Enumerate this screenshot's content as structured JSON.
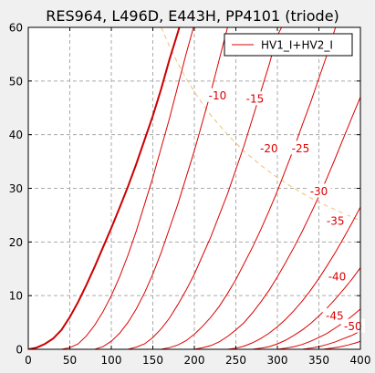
{
  "chart_data": {
    "type": "line",
    "title": "RES964, L496D, E443H, PP4101 (triode)",
    "xlim": [
      0,
      400
    ],
    "ylim": [
      0,
      60
    ],
    "x_ticks": [
      0,
      50,
      100,
      150,
      200,
      250,
      300,
      350,
      400
    ],
    "y_ticks": [
      0,
      10,
      20,
      30,
      40,
      50,
      60
    ],
    "grid": true,
    "legend": {
      "placement": "top-right",
      "entries": [
        "HV1_I+HV2_I"
      ]
    },
    "colors": {
      "curves": "#dd0000",
      "zero_curve": "#cc0000",
      "dissipation": "#f0c070",
      "label_bg": "#ffffff"
    },
    "series": [
      {
        "grid_v": "0",
        "label": "",
        "points": [
          [
            0,
            0
          ],
          [
            10,
            0.3
          ],
          [
            20,
            1
          ],
          [
            30,
            2
          ],
          [
            40,
            3.6
          ],
          [
            50,
            6
          ],
          [
            60,
            8.8
          ],
          [
            70,
            12
          ],
          [
            80,
            15.4
          ],
          [
            90,
            19
          ],
          [
            100,
            22.6
          ],
          [
            110,
            26.4
          ],
          [
            120,
            30.3
          ],
          [
            130,
            34.5
          ],
          [
            140,
            39
          ],
          [
            150,
            43.5
          ],
          [
            160,
            48.5
          ],
          [
            170,
            54
          ],
          [
            178,
            58
          ],
          [
            182,
            60
          ]
        ]
      },
      {
        "grid_v": "-5",
        "label": "",
        "points": [
          [
            40,
            0
          ],
          [
            50,
            0.3
          ],
          [
            60,
            1
          ],
          [
            70,
            2.5
          ],
          [
            80,
            4.5
          ],
          [
            90,
            7
          ],
          [
            100,
            10
          ],
          [
            110,
            13.5
          ],
          [
            120,
            17.5
          ],
          [
            130,
            22
          ],
          [
            140,
            27
          ],
          [
            150,
            32
          ],
          [
            160,
            37.5
          ],
          [
            170,
            43
          ],
          [
            180,
            49
          ],
          [
            190,
            55
          ],
          [
            199,
            60
          ]
        ]
      },
      {
        "grid_v": "-10",
        "label": "-10",
        "label_pos": [
          228,
          47.3
        ],
        "points": [
          [
            80,
            0
          ],
          [
            90,
            0.5
          ],
          [
            100,
            1.5
          ],
          [
            110,
            3
          ],
          [
            120,
            5
          ],
          [
            130,
            7.5
          ],
          [
            140,
            10.5
          ],
          [
            150,
            14
          ],
          [
            160,
            18
          ],
          [
            170,
            22.5
          ],
          [
            180,
            27
          ],
          [
            190,
            32
          ],
          [
            200,
            37
          ],
          [
            210,
            42.5
          ],
          [
            220,
            48
          ],
          [
            230,
            54
          ],
          [
            240,
            60
          ]
        ]
      },
      {
        "grid_v": "-15",
        "label": "-15",
        "label_pos": [
          273,
          46.7
        ],
        "points": [
          [
            120,
            0
          ],
          [
            130,
            0.4
          ],
          [
            140,
            1
          ],
          [
            150,
            2.2
          ],
          [
            160,
            3.8
          ],
          [
            170,
            5.8
          ],
          [
            180,
            8.3
          ],
          [
            190,
            11
          ],
          [
            200,
            14
          ],
          [
            210,
            17.5
          ],
          [
            220,
            21
          ],
          [
            230,
            25
          ],
          [
            240,
            29
          ],
          [
            250,
            33.5
          ],
          [
            260,
            38
          ],
          [
            270,
            43
          ],
          [
            280,
            48
          ],
          [
            290,
            53
          ],
          [
            300,
            58.5
          ],
          [
            305,
            60
          ]
        ]
      },
      {
        "grid_v": "-20",
        "label": "-20",
        "label_pos": [
          290,
          37.5
        ],
        "points": [
          [
            160,
            0
          ],
          [
            170,
            0.3
          ],
          [
            180,
            0.8
          ],
          [
            190,
            1.6
          ],
          [
            200,
            2.8
          ],
          [
            210,
            4.3
          ],
          [
            220,
            6
          ],
          [
            230,
            8
          ],
          [
            240,
            10.4
          ],
          [
            250,
            13
          ],
          [
            260,
            16
          ],
          [
            270,
            19
          ],
          [
            280,
            22.3
          ],
          [
            290,
            25.8
          ],
          [
            300,
            29.5
          ],
          [
            310,
            33.5
          ],
          [
            320,
            37.5
          ],
          [
            330,
            41.8
          ],
          [
            340,
            46
          ],
          [
            350,
            50.5
          ],
          [
            360,
            55
          ],
          [
            370,
            60
          ]
        ]
      },
      {
        "grid_v": "-25",
        "label": "-25",
        "label_pos": [
          328,
          37.5
        ],
        "points": [
          [
            200,
            0
          ],
          [
            210,
            0.3
          ],
          [
            220,
            0.7
          ],
          [
            230,
            1.4
          ],
          [
            240,
            2.4
          ],
          [
            250,
            3.6
          ],
          [
            260,
            5
          ],
          [
            270,
            6.8
          ],
          [
            280,
            8.8
          ],
          [
            290,
            11
          ],
          [
            300,
            13.5
          ],
          [
            310,
            16.2
          ],
          [
            320,
            19
          ],
          [
            330,
            22
          ],
          [
            340,
            25.2
          ],
          [
            350,
            28.5
          ],
          [
            360,
            32
          ],
          [
            370,
            35.7
          ],
          [
            380,
            39.5
          ],
          [
            390,
            43.3
          ],
          [
            400,
            47
          ]
        ]
      },
      {
        "grid_v": "-30",
        "label": "-30",
        "label_pos": [
          350,
          29.5
        ],
        "points": [
          [
            240,
            0
          ],
          [
            250,
            0.2
          ],
          [
            260,
            0.6
          ],
          [
            270,
            1.2
          ],
          [
            280,
            2
          ],
          [
            290,
            3
          ],
          [
            300,
            4.2
          ],
          [
            310,
            5.6
          ],
          [
            320,
            7.2
          ],
          [
            330,
            9
          ],
          [
            340,
            11
          ],
          [
            350,
            13.2
          ],
          [
            360,
            15.6
          ],
          [
            370,
            18.1
          ],
          [
            380,
            20.8
          ],
          [
            390,
            23.6
          ],
          [
            400,
            26.5
          ]
        ]
      },
      {
        "grid_v": "-35",
        "label": "-35",
        "label_pos": [
          370,
          24
        ],
        "points": [
          [
            270,
            0
          ],
          [
            280,
            0.2
          ],
          [
            290,
            0.5
          ],
          [
            300,
            1
          ],
          [
            310,
            1.7
          ],
          [
            320,
            2.6
          ],
          [
            330,
            3.6
          ],
          [
            340,
            4.8
          ],
          [
            350,
            6.2
          ],
          [
            360,
            7.7
          ],
          [
            370,
            9.4
          ],
          [
            380,
            11.2
          ],
          [
            390,
            13.1
          ],
          [
            400,
            15.2
          ]
        ]
      },
      {
        "grid_v": "-40",
        "label": "-40",
        "label_pos": [
          372,
          13.6
        ],
        "points": [
          [
            300,
            0
          ],
          [
            310,
            0.2
          ],
          [
            320,
            0.5
          ],
          [
            330,
            0.9
          ],
          [
            340,
            1.5
          ],
          [
            350,
            2.2
          ],
          [
            360,
            3
          ],
          [
            370,
            4
          ],
          [
            380,
            5
          ],
          [
            390,
            6.2
          ],
          [
            400,
            7.5
          ]
        ]
      },
      {
        "grid_v": "-45",
        "label": "-45",
        "label_pos": [
          369,
          6.3
        ],
        "points": [
          [
            330,
            0
          ],
          [
            340,
            0.2
          ],
          [
            350,
            0.5
          ],
          [
            360,
            0.9
          ],
          [
            370,
            1.4
          ],
          [
            380,
            2
          ],
          [
            390,
            2.6
          ],
          [
            400,
            3.4
          ]
        ]
      },
      {
        "grid_v": "-50",
        "label": "-50",
        "label_pos": [
          391,
          4.3
        ],
        "points": [
          [
            355,
            0
          ],
          [
            365,
            0.2
          ],
          [
            375,
            0.45
          ],
          [
            385,
            0.8
          ],
          [
            395,
            1.2
          ],
          [
            400,
            1.5
          ]
        ]
      }
    ],
    "dissipation_curve": [
      [
        160,
        60
      ],
      [
        170,
        56.5
      ],
      [
        180,
        53.3
      ],
      [
        190,
        50.5
      ],
      [
        200,
        48
      ],
      [
        210,
        45.7
      ],
      [
        220,
        43.6
      ],
      [
        240,
        40
      ],
      [
        260,
        36.9
      ],
      [
        280,
        34.3
      ],
      [
        300,
        32
      ],
      [
        320,
        30
      ],
      [
        340,
        28.2
      ],
      [
        360,
        26.7
      ],
      [
        380,
        25.3
      ],
      [
        400,
        24
      ]
    ]
  }
}
